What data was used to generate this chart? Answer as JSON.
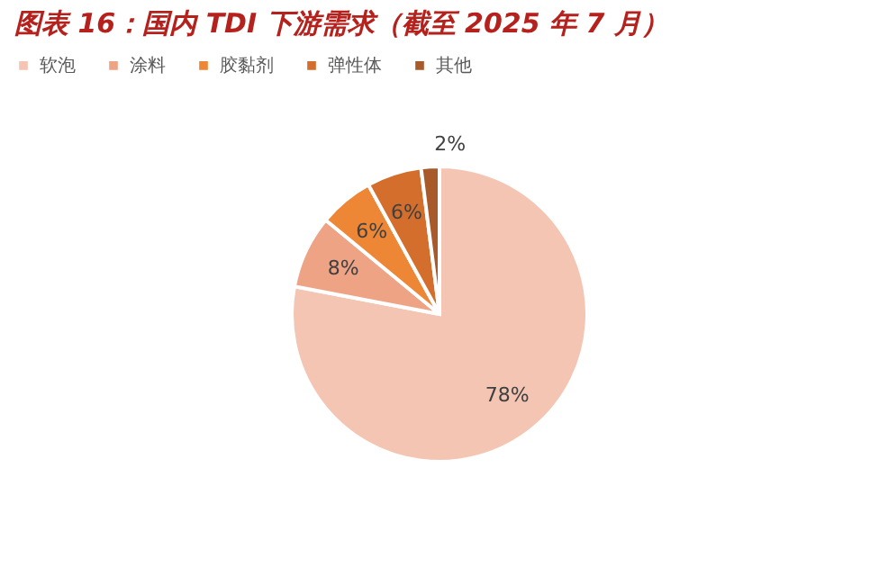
{
  "chart_data": {
    "type": "pie",
    "title": "图表 16：国内 TDI 下游需求（截至 2025 年 7 月）",
    "categories": [
      "软泡",
      "涂料",
      "胶黏剂",
      "弹性体",
      "其他"
    ],
    "values": [
      78,
      8,
      6,
      6,
      2
    ],
    "colors": [
      "#f4c5b3",
      "#eea385",
      "#ed8635",
      "#d46e2c",
      "#a85a2a"
    ],
    "value_labels": [
      "78%",
      "8%",
      "6%",
      "6%",
      "2%"
    ],
    "legend": "top"
  }
}
